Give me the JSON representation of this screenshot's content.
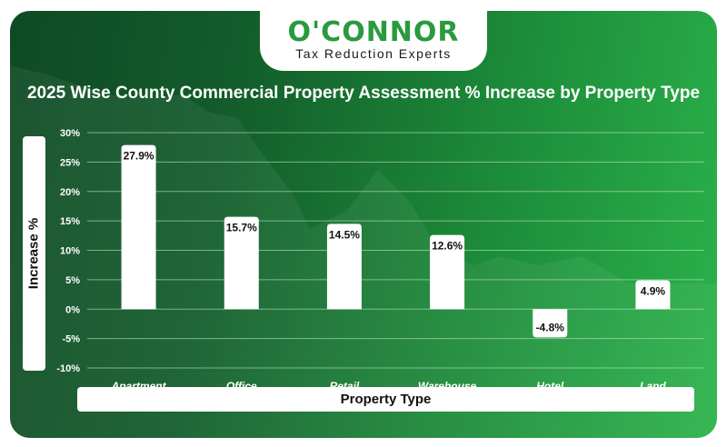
{
  "brand": {
    "name": "O'CONNOR",
    "tagline": "Tax Reduction Experts"
  },
  "chart_data": {
    "type": "bar",
    "title": "2025 Wise County Commercial Property Assessment % Increase by Property Type",
    "xlabel": "Property Type",
    "ylabel": "Increase %",
    "categories": [
      "Apartment",
      "Office",
      "Retail",
      "Warehouse",
      "Hotel",
      "Land"
    ],
    "values": [
      27.9,
      15.7,
      14.5,
      12.6,
      -4.8,
      4.9
    ],
    "data_labels": [
      "27.9%",
      "15.7%",
      "14.5%",
      "12.6%",
      "-4.8%",
      "4.9%"
    ],
    "ylim": [
      -10,
      30
    ],
    "yticks": [
      30,
      25,
      20,
      15,
      10,
      5,
      0,
      -5,
      -10
    ],
    "ytick_labels": [
      "30%",
      "25%",
      "20%",
      "15%",
      "10%",
      "5%",
      "0%",
      "-5%",
      "-10%"
    ],
    "grid": true,
    "legend": "none",
    "colors": {
      "bar": "#ffffff",
      "background_dark": "#0e4a24",
      "background_light": "#2bb34a",
      "grid": "#bfe6c8",
      "brand_green": "#2a9a3e"
    }
  }
}
